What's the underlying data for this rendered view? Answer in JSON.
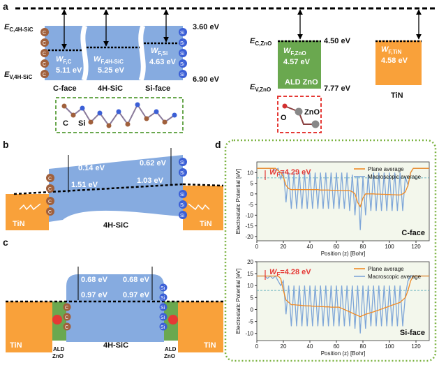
{
  "figure": {
    "a": {
      "label": "a",
      "sic": {
        "ec": {
          "main": "E",
          "sub": "C,4H-SiC"
        },
        "ev": {
          "main": "E",
          "sub": "V,4H-SiC"
        },
        "ec_value": "3.60 eV",
        "ev_value": "6.90 eV",
        "wf": [
          {
            "main": "W",
            "sub": "F,C",
            "value": "5.11 eV"
          },
          {
            "main": "W",
            "sub": "F,4H-SiC",
            "value": "5.25 eV"
          },
          {
            "main": "W",
            "sub": "F,Si",
            "value": "4.63 eV"
          }
        ],
        "faces": [
          "C-face",
          "4H-SiC",
          "Si-face"
        ],
        "atom_c": "C",
        "atom_si": "Si"
      },
      "zno": {
        "ec": {
          "main": "E",
          "sub": "C,ZnO"
        },
        "ev": {
          "main": "E",
          "sub": "V,ZnO"
        },
        "ec_value": "4.50 eV",
        "ev_value": "7.77 eV",
        "wf": {
          "main": "W",
          "sub": "F,ZnO",
          "value": "4.57 eV"
        },
        "name": "ALD ZnO",
        "atom_o": "O",
        "atom_zno": "ZnO"
      },
      "tin": {
        "wf": {
          "main": "W",
          "sub": "F,TiN",
          "value": "4.58 eV"
        },
        "name": "TiN"
      }
    },
    "b": {
      "label": "b",
      "left_top": "0.14 eV",
      "left_bottom": "1.51 eV",
      "right_top": "0.62 eV",
      "right_bottom": "1.03 eV",
      "metal": "TiN",
      "semi": "4H-SiC"
    },
    "c": {
      "label": "c",
      "left_top": "0.68 eV",
      "left_bottom": "0.97 eV",
      "right_top": "0.68 eV",
      "right_bottom": "0.97 eV",
      "metal": "TiN",
      "semi": "4H-SiC",
      "ald": "ALD",
      "zno": "ZnO"
    },
    "d": {
      "label": "d"
    }
  },
  "chart_data": [
    {
      "type": "line",
      "xlabel": "Position (z) [Bohr]",
      "ylabel": "Electrostatic Potential [eV]",
      "annotation": "C-face",
      "wf": {
        "main": "W",
        "sub": "F",
        "rest": "=4.29 eV"
      },
      "reference": 7.5,
      "legend": "upper right",
      "grid": false,
      "xlim": [
        0,
        130
      ],
      "xticks": [
        0,
        20,
        40,
        60,
        80,
        100,
        120
      ],
      "ylim": [
        -22,
        15
      ],
      "yticks": [
        -20,
        -15,
        -10,
        -5,
        0,
        5,
        10
      ],
      "x": [
        0,
        2,
        4,
        6,
        8,
        10,
        12,
        14,
        16,
        18,
        20,
        22,
        24,
        26,
        28,
        30,
        32,
        34,
        36,
        38,
        40,
        42,
        44,
        46,
        48,
        50,
        52,
        54,
        56,
        58,
        60,
        62,
        64,
        66,
        68,
        70,
        72,
        74,
        76,
        78,
        80,
        82,
        84,
        86,
        88,
        90,
        92,
        94,
        96,
        98,
        100,
        102,
        104,
        106,
        108,
        110,
        112,
        114,
        116,
        118,
        120,
        122,
        124,
        126,
        128,
        130
      ],
      "series": [
        {
          "name": "Plane average",
          "color": "#f08a24",
          "values": [
            12,
            12,
            12,
            12,
            12,
            12,
            12,
            12,
            11,
            10,
            8,
            4,
            2.5,
            2,
            2,
            2,
            2,
            2,
            2,
            2,
            2,
            2,
            2,
            2,
            1.8,
            1.8,
            1.8,
            1.8,
            1.7,
            1.7,
            1.7,
            1.6,
            1.6,
            1.5,
            1.5,
            1.5,
            1,
            0,
            -4,
            -6,
            -2,
            0,
            0,
            0,
            0,
            -0.1,
            -0.1,
            -0.2,
            -0.2,
            -0.3,
            -0.3,
            -0.4,
            -0.4,
            -0.5,
            -0.5,
            0,
            1,
            4,
            10,
            12,
            12,
            12,
            12,
            12,
            12,
            12
          ]
        },
        {
          "name": "Macroscopic average",
          "color": "#7ea6d8",
          "values": [
            12,
            12,
            12,
            12,
            12,
            12,
            12,
            11,
            12,
            7,
            11,
            -4,
            10,
            -7,
            10,
            -7,
            10,
            -7,
            10,
            -7,
            10,
            -7,
            10,
            -7,
            10,
            -7,
            10,
            -7,
            10,
            -7,
            10,
            -7,
            10,
            -7,
            10,
            -8,
            9,
            -10,
            8,
            -17,
            8,
            -10,
            9,
            -8,
            10,
            -8,
            10,
            -8,
            10,
            -8,
            10,
            -8,
            10,
            -8,
            10,
            -8,
            8,
            4,
            10,
            12,
            12,
            12,
            12,
            12,
            12,
            12
          ]
        }
      ]
    },
    {
      "type": "line",
      "xlabel": "Position (z) [Bohr]",
      "ylabel": "Electrostatic Potential [eV]",
      "annotation": "Si-face",
      "wf": {
        "main": "W",
        "sub": "F",
        "rest": "=4.28 eV"
      },
      "reference": 8,
      "legend": "upper right",
      "grid": false,
      "xlim": [
        0,
        130
      ],
      "xticks": [
        0,
        20,
        40,
        60,
        80,
        100,
        120
      ],
      "ylim": [
        -13,
        20
      ],
      "yticks": [
        -10,
        -5,
        0,
        5,
        10,
        15,
        20
      ],
      "x": [
        0,
        2,
        4,
        6,
        8,
        10,
        12,
        14,
        16,
        18,
        20,
        22,
        24,
        26,
        28,
        30,
        32,
        34,
        36,
        38,
        40,
        42,
        44,
        46,
        48,
        50,
        52,
        54,
        56,
        58,
        60,
        62,
        64,
        66,
        68,
        70,
        72,
        74,
        76,
        78,
        80,
        82,
        84,
        86,
        88,
        90,
        92,
        94,
        96,
        98,
        100,
        102,
        104,
        106,
        108,
        110,
        112,
        114,
        116,
        118,
        120,
        122,
        124,
        126,
        128,
        130
      ],
      "series": [
        {
          "name": "Plane average",
          "color": "#f08a24",
          "values": [
            14,
            14,
            14,
            14,
            14,
            14,
            14,
            14,
            14,
            13,
            8,
            4,
            3,
            2,
            2,
            1.9,
            1.8,
            1.7,
            1.6,
            1.5,
            1.5,
            1.4,
            1.3,
            1.3,
            1.2,
            1.2,
            1.1,
            1.1,
            1,
            1,
            1,
            1,
            0.5,
            0,
            -0.5,
            -1,
            -1.5,
            -2,
            -2.5,
            -3,
            -2.5,
            -2,
            -1.7,
            -1.3,
            -1,
            -0.6,
            -0.2,
            0.2,
            0.6,
            1,
            1.4,
            1.8,
            2.2,
            2.6,
            3,
            4,
            5,
            8,
            12,
            14,
            14,
            14,
            14,
            14,
            14,
            14
          ]
        },
        {
          "name": "Macroscopic average",
          "color": "#7ea6d8",
          "values": [
            14,
            14,
            14,
            14,
            13,
            14,
            13,
            14,
            12,
            10,
            12,
            -2,
            10,
            -7,
            10,
            -7,
            10,
            -7,
            10,
            -7,
            10,
            -7,
            10,
            -7,
            10,
            -7,
            10,
            -7,
            10,
            -7,
            10,
            -7,
            10,
            -7,
            10,
            -7,
            10,
            -8,
            10,
            -10,
            10,
            -8,
            10,
            -7,
            10,
            -7,
            10,
            -7,
            10,
            -7,
            10,
            -7,
            10,
            -7,
            10,
            -7,
            6,
            12,
            14,
            14,
            14,
            14,
            14,
            14,
            14,
            14
          ]
        }
      ]
    }
  ]
}
